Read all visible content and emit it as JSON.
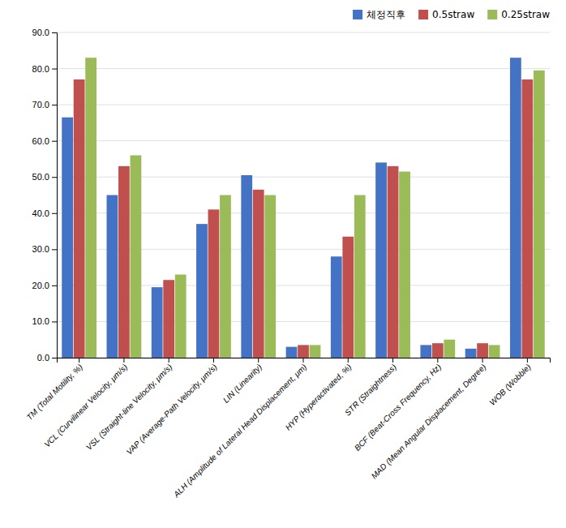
{
  "chart_data": {
    "type": "bar",
    "categories": [
      "TM (Total Motility, %)",
      "VCL (Curvilinear Velocity, μm/s)",
      "VSL (Straight-line Velocity, μm/s)",
      "VAP (Average-Path Velocity, μm/s)",
      "LIN (Linearity)",
      "ALH (Amplitude of Lateral Head Displacement, μm)",
      "HYP (Hyperactivated, %)",
      "STR (Straightness)",
      "BCF (Beat-Cross Frequency, Hz)",
      "MAD (Mean Angular Displacement, Degree)",
      "WOB (Wobble)"
    ],
    "series": [
      {
        "name": "체정직후",
        "color": "#4472C4",
        "values": [
          66.5,
          45.0,
          19.5,
          37.0,
          50.5,
          3.0,
          28.0,
          54.0,
          3.5,
          2.5,
          83.0
        ]
      },
      {
        "name": "0.5straw",
        "color": "#C0504D",
        "values": [
          77.0,
          53.0,
          21.5,
          41.0,
          46.5,
          3.5,
          33.5,
          53.0,
          4.0,
          4.0,
          77.0
        ]
      },
      {
        "name": "0.25straw",
        "color": "#9BBB59",
        "values": [
          83.0,
          56.0,
          23.0,
          45.0,
          45.0,
          3.5,
          45.0,
          51.5,
          5.0,
          3.5,
          79.5
        ]
      }
    ],
    "ylim": [
      0,
      90
    ],
    "yticks": [
      {
        "value": 0,
        "label": "0.0"
      },
      {
        "value": 10,
        "label": "10.0"
      },
      {
        "value": 20,
        "label": "20.0"
      },
      {
        "value": 30,
        "label": "30.0"
      },
      {
        "value": 40,
        "label": "40.0"
      },
      {
        "value": 50,
        "label": "50.0"
      },
      {
        "value": 60,
        "label": "60.0"
      },
      {
        "value": 70,
        "label": "70.0"
      },
      {
        "value": 80,
        "label": "80.0"
      },
      {
        "value": 90,
        "label": "90.0"
      }
    ],
    "grid": true,
    "legend": "upper right"
  }
}
